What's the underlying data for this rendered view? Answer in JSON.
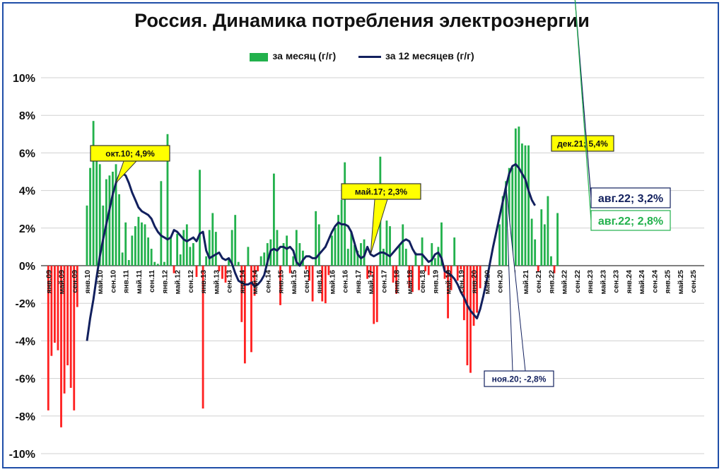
{
  "chart_data": {
    "type": "bar+line",
    "title": "Россия. Динамика потребления электроэнергии",
    "ylim": [
      -10,
      10
    ],
    "yticks": [
      "10%",
      "8%",
      "6%",
      "4%",
      "2%",
      "0%",
      "-2%",
      "-4%",
      "-6%",
      "-8%",
      "-10%"
    ],
    "ytick_values": [
      10,
      8,
      6,
      4,
      2,
      0,
      -2,
      -4,
      -6,
      -8,
      -10
    ],
    "grid": true,
    "legend_position": "top-center",
    "colors": {
      "positive_bar": "#22b14c",
      "negative_bar": "#ff2020",
      "line": "#12205e",
      "frame": "#1f4ea8",
      "callout_bg": "#ffff00"
    },
    "x_labels": [
      "янв.09",
      "май.09",
      "сен.09",
      "янв.10",
      "май.10",
      "сен.10",
      "янв.11",
      "май.11",
      "сен.11",
      "янв.12",
      "май.12",
      "сен.12",
      "янв.13",
      "май.13",
      "сен.13",
      "янв.14",
      "май.14",
      "сен.14",
      "янв.15",
      "май.15",
      "сен.15",
      "янв.16",
      "май.16",
      "сен.16",
      "янв.17",
      "май.17",
      "сен.17",
      "янв.18",
      "май.18",
      "сен.18",
      "янв.19",
      "май.19",
      "сен.19",
      "янв.20",
      "май.20",
      "сен.20",
      "янв.21",
      "май.21",
      "сен.21",
      "янв.22",
      "май.22",
      "сен.22",
      "янв.23",
      "май.23",
      "сен.23",
      "янв.24",
      "май.24",
      "сен.24",
      "янв.25",
      "май.25",
      "сен.25"
    ],
    "series": [
      {
        "name": "за месяц (г/г)",
        "kind": "bar",
        "start_month_index": 0,
        "values": [
          -7.7,
          -4.8,
          -4.1,
          -4.5,
          -8.6,
          -6.8,
          -5.3,
          -6.5,
          -7.7,
          -2.2,
          0,
          0,
          3.2,
          5.2,
          7.7,
          5.8,
          5.4,
          3.2,
          4.6,
          4.8,
          5.0,
          5.4,
          3.8,
          0.7,
          2.3,
          0.3,
          1.6,
          2.1,
          2.6,
          2.3,
          2.2,
          1.5,
          0.9,
          0.2,
          0.1,
          4.5,
          0.2,
          7.0,
          1.5,
          -0.4,
          1.7,
          0.6,
          1.9,
          2.2,
          1.0,
          1.2,
          -0.6,
          5.1,
          -7.6,
          0.5,
          1.9,
          2.8,
          1.8,
          -0.3,
          -0.7,
          -0.9,
          0.4,
          1.9,
          2.7,
          0.2,
          -3.0,
          -5.2,
          1.0,
          -4.6,
          -1.6,
          -0.3,
          0.5,
          0.7,
          1.2,
          1.4,
          4.9,
          1.9,
          -2.1,
          1.2,
          1.6,
          -0.4,
          0.5,
          1.9,
          1.2,
          0.8,
          -0.2,
          -0.8,
          -1.9,
          2.9,
          2.2,
          -1.9,
          -2.0,
          -0.5,
          1.6,
          2.0,
          2.7,
          3.5,
          5.5,
          0.9,
          1.8,
          1.1,
          0.8,
          1.2,
          1.4,
          -0.7,
          -0.5,
          -3.1,
          -3.0,
          5.8,
          0.9,
          2.4,
          2.1,
          -0.9,
          -1.5,
          1.1,
          2.2,
          0.9,
          -1.2,
          -1.4,
          0.7,
          -1.3,
          1.5,
          -0.3,
          -0.5,
          1.2,
          0.4,
          1.0,
          2.3,
          -0.7,
          -2.8,
          -1.3,
          1.5,
          -0.8,
          -0.2,
          -2.9,
          -5.3,
          -5.7,
          -3.2,
          -2.5,
          -1.2,
          0,
          0,
          0,
          0,
          0,
          2.2,
          3.7,
          4.5,
          5.2,
          5.2,
          7.3,
          7.4,
          6.5,
          6.4,
          6.4,
          2.5,
          1.4,
          -0.3,
          3.0,
          2.2,
          3.7,
          0.5,
          -0.4,
          2.8
        ]
      },
      {
        "name": "за 12 месяцев (г/г)",
        "kind": "line",
        "start_month_index": 12,
        "values": [
          -4.0,
          -2.8,
          -1.8,
          -0.6,
          0.5,
          1.4,
          2.2,
          3.0,
          3.8,
          4.4,
          4.8,
          4.9,
          4.8,
          4.4,
          3.9,
          3.5,
          3.1,
          2.9,
          2.8,
          2.7,
          2.5,
          2.1,
          1.8,
          1.6,
          1.5,
          1.4,
          1.5,
          1.9,
          1.8,
          1.6,
          1.4,
          1.3,
          1.4,
          1.5,
          1.3,
          1.7,
          1.8,
          0.8,
          0.4,
          0.5,
          0.6,
          0.7,
          0.4,
          0.3,
          0.4,
          0.1,
          -0.4,
          -0.8,
          -0.9,
          -1.0,
          -1.0,
          -0.9,
          -1.1,
          -1.0,
          -0.8,
          -0.5,
          0.2,
          0.8,
          0.9,
          0.8,
          1.0,
          1.0,
          0.9,
          1.0,
          0.8,
          0.2,
          0.0,
          0.3,
          0.5,
          0.5,
          0.4,
          0.4,
          0.6,
          0.8,
          1.0,
          1.4,
          1.8,
          2.1,
          2.3,
          2.2,
          2.2,
          2.1,
          1.8,
          1.2,
          0.6,
          0.4,
          0.5,
          1.0,
          0.6,
          0.5,
          0.6,
          0.7,
          0.7,
          0.6,
          0.5,
          0.7,
          0.9,
          1.1,
          1.3,
          1.4,
          1.3,
          0.9,
          0.6,
          0.6,
          0.6,
          0.4,
          0.2,
          0.3,
          0.6,
          0.7,
          0.4,
          -0.3,
          -0.4,
          -0.5,
          -0.7,
          -1.0,
          -1.4,
          -1.7,
          -2.1,
          -2.4,
          -2.6,
          -2.8,
          -2.3,
          -1.6,
          -0.8,
          0.1,
          1.0,
          1.8,
          2.6,
          3.4,
          4.2,
          4.9,
          5.3,
          5.4,
          5.2,
          4.9,
          4.6,
          4.0,
          3.5,
          3.2
        ]
      }
    ],
    "annotations": [
      {
        "text": "окт.10; 4,9%",
        "style": "yellow-box"
      },
      {
        "text": "май.17; 2,3%",
        "style": "yellow-box"
      },
      {
        "text": "дек.21; 5,4%",
        "style": "yellow-box"
      },
      {
        "text": "ноя.20; -2,8%",
        "style": "white-box"
      },
      {
        "text": "авг.22; 3,2%",
        "style": "navy-box"
      },
      {
        "text": "авг.22; 2,8%",
        "style": "green-box"
      }
    ]
  }
}
